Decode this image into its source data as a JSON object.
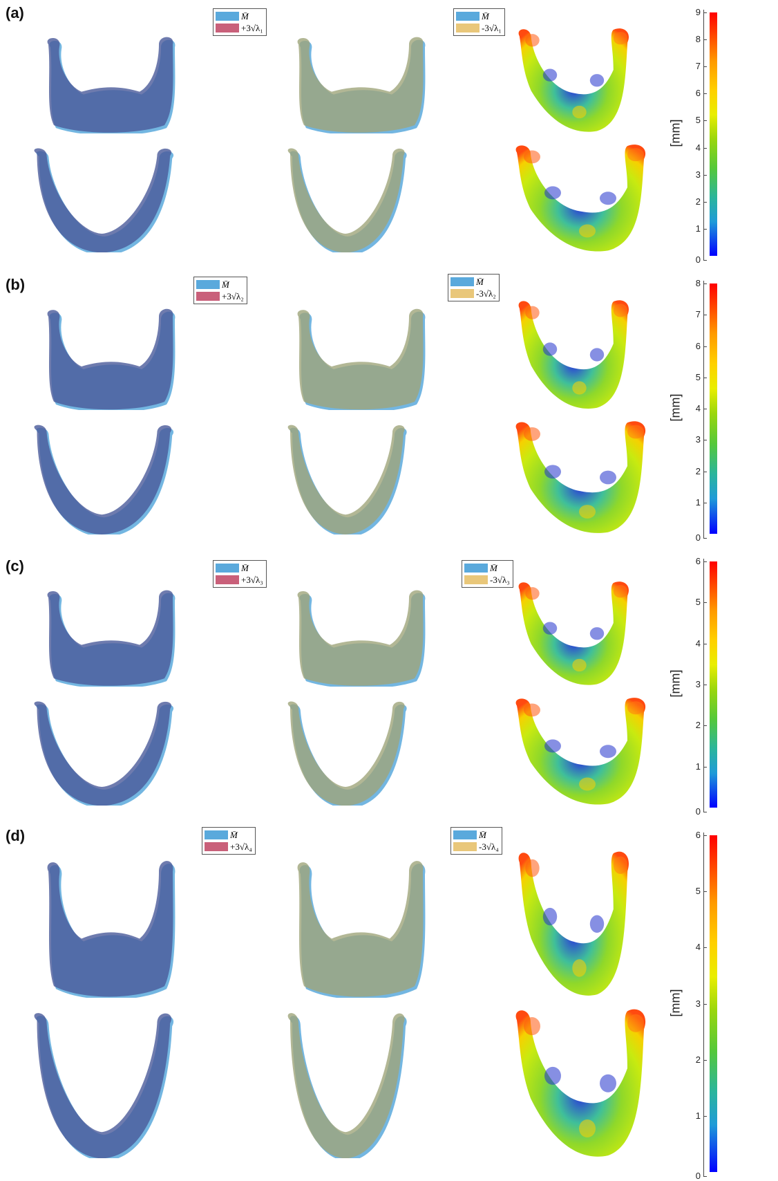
{
  "panels": [
    {
      "label": "(a)",
      "legend_pos": {
        "mean": "M̄",
        "label": "+3√λ₁"
      },
      "legend_neg": {
        "mean": "M̄",
        "label": "-3√λ₁"
      },
      "colorbar": {
        "unit": "[mm]",
        "max": 9,
        "ticks": [
          "0",
          "1",
          "2",
          "3",
          "4",
          "5",
          "6",
          "7",
          "8",
          "9"
        ]
      }
    },
    {
      "label": "(b)",
      "legend_pos": {
        "mean": "M̄",
        "label": "+3√λ₂"
      },
      "legend_neg": {
        "mean": "M̄",
        "label": "-3√λ₂"
      },
      "colorbar": {
        "unit": "[mm]",
        "max": 8,
        "ticks": [
          "0",
          "1",
          "2",
          "3",
          "4",
          "5",
          "6",
          "7",
          "8"
        ]
      }
    },
    {
      "label": "(c)",
      "legend_pos": {
        "mean": "M̄",
        "label": "+3√λ₃"
      },
      "legend_neg": {
        "mean": "M̄",
        "label": "-3√λ₃"
      },
      "colorbar": {
        "unit": "[mm]",
        "max": 6,
        "ticks": [
          "0",
          "1",
          "2",
          "3",
          "4",
          "5",
          "6"
        ]
      }
    },
    {
      "label": "(d)",
      "legend_pos": {
        "mean": "M̄",
        "label": "+3√λ₄"
      },
      "legend_neg": {
        "mean": "M̄",
        "label": "-3√λ₄"
      },
      "colorbar": {
        "unit": "[mm]",
        "max": 6,
        "ticks": [
          "0",
          "1",
          "2",
          "3",
          "4",
          "5",
          "6"
        ]
      }
    }
  ],
  "colors": {
    "mean": "#5aa9dc",
    "positive": "#c9607a",
    "negative": "#e9c77a",
    "overlay_pos": "#4a5a9a",
    "overlay_neg": "#9fa57a"
  }
}
